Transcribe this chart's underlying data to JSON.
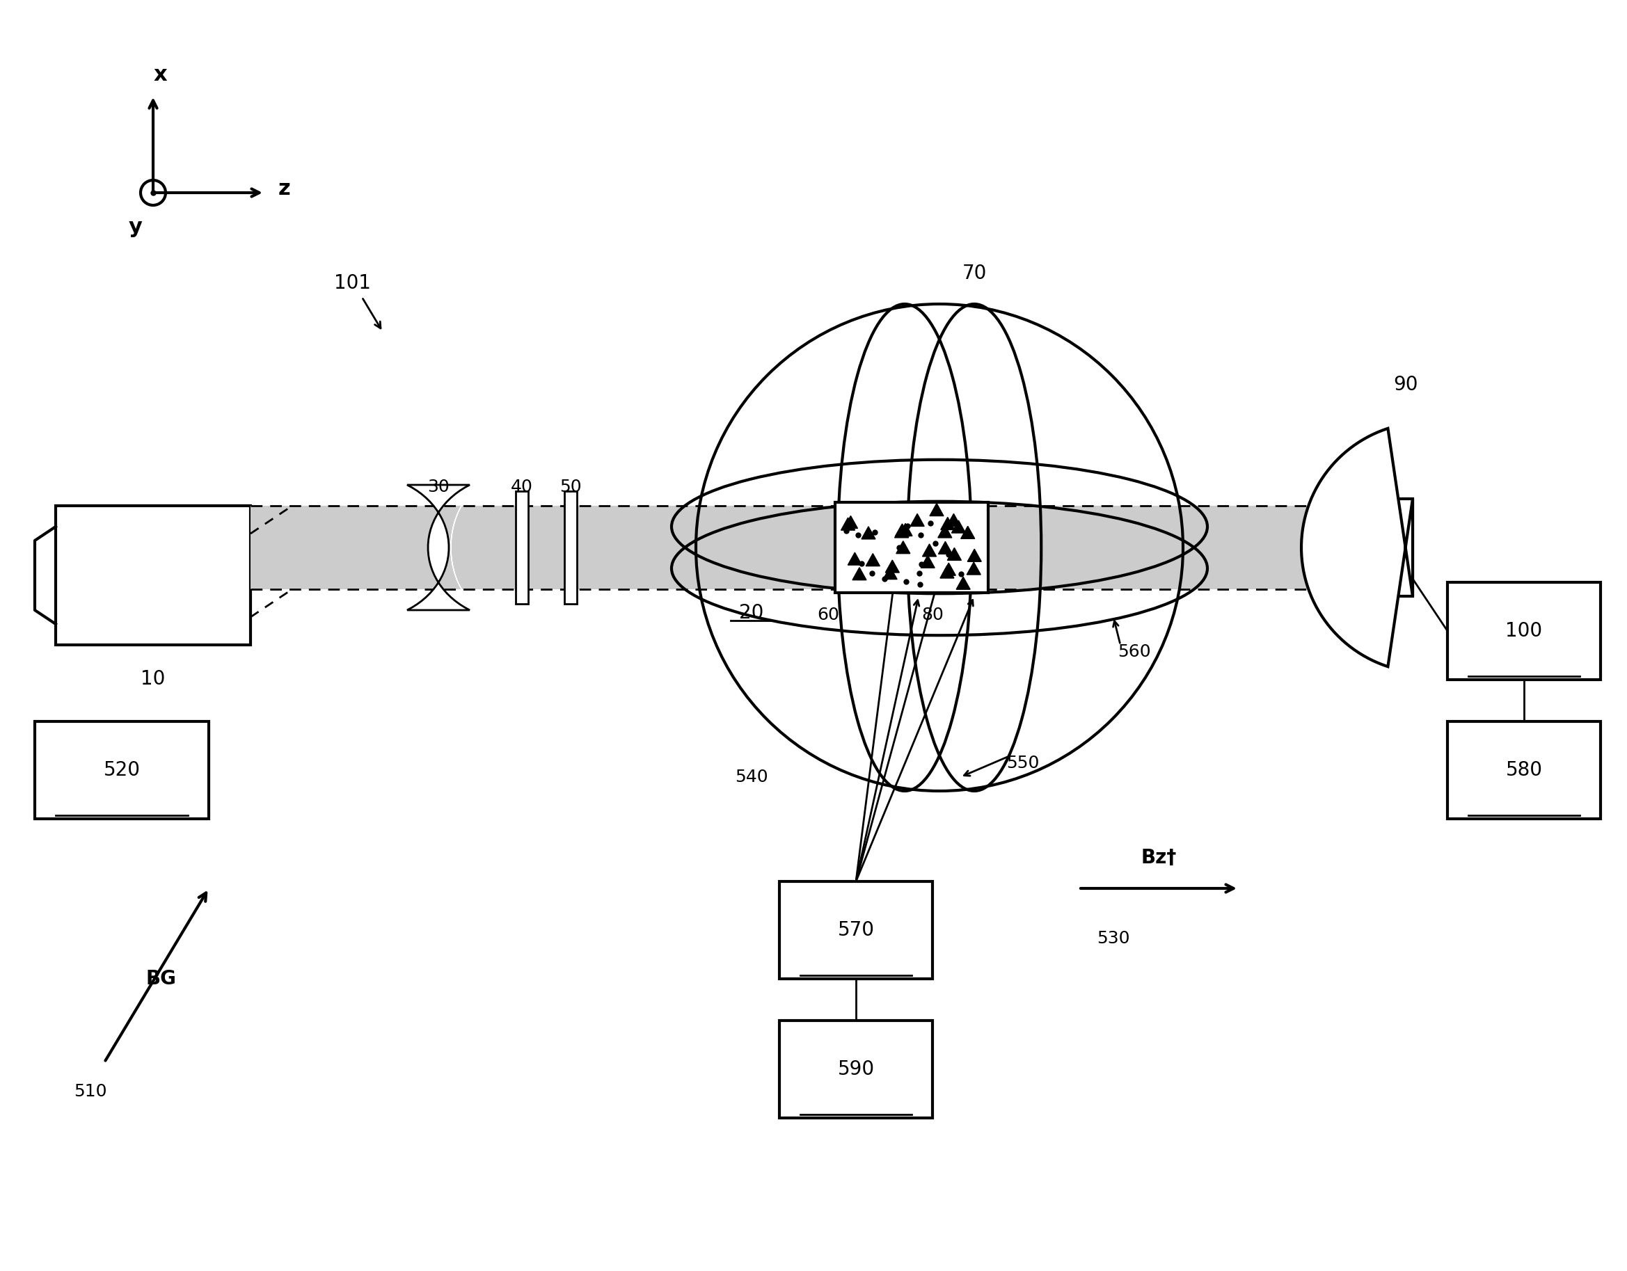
{
  "bg_color": "#ffffff",
  "line_color": "#000000",
  "gray_fill": "#d0d0d0",
  "light_gray": "#e8e8e8",
  "fig_width": 23.38,
  "fig_height": 18.27,
  "labels": {
    "axis_x": "x",
    "axis_y": "y",
    "axis_z": "z",
    "label_101": "101",
    "label_10": "10",
    "label_20": "20",
    "label_30": "30",
    "label_40": "40",
    "label_50": "50",
    "label_60": "60",
    "label_70": "70",
    "label_80": "80",
    "label_90": "90",
    "label_100": "100",
    "label_510": "510",
    "label_520": "520",
    "label_530": "530",
    "label_540": "540",
    "label_550": "550",
    "label_560": "560",
    "label_570": "570",
    "label_580": "580",
    "label_590": "590",
    "label_BG": "BG",
    "label_Bzt": "Bz†"
  }
}
